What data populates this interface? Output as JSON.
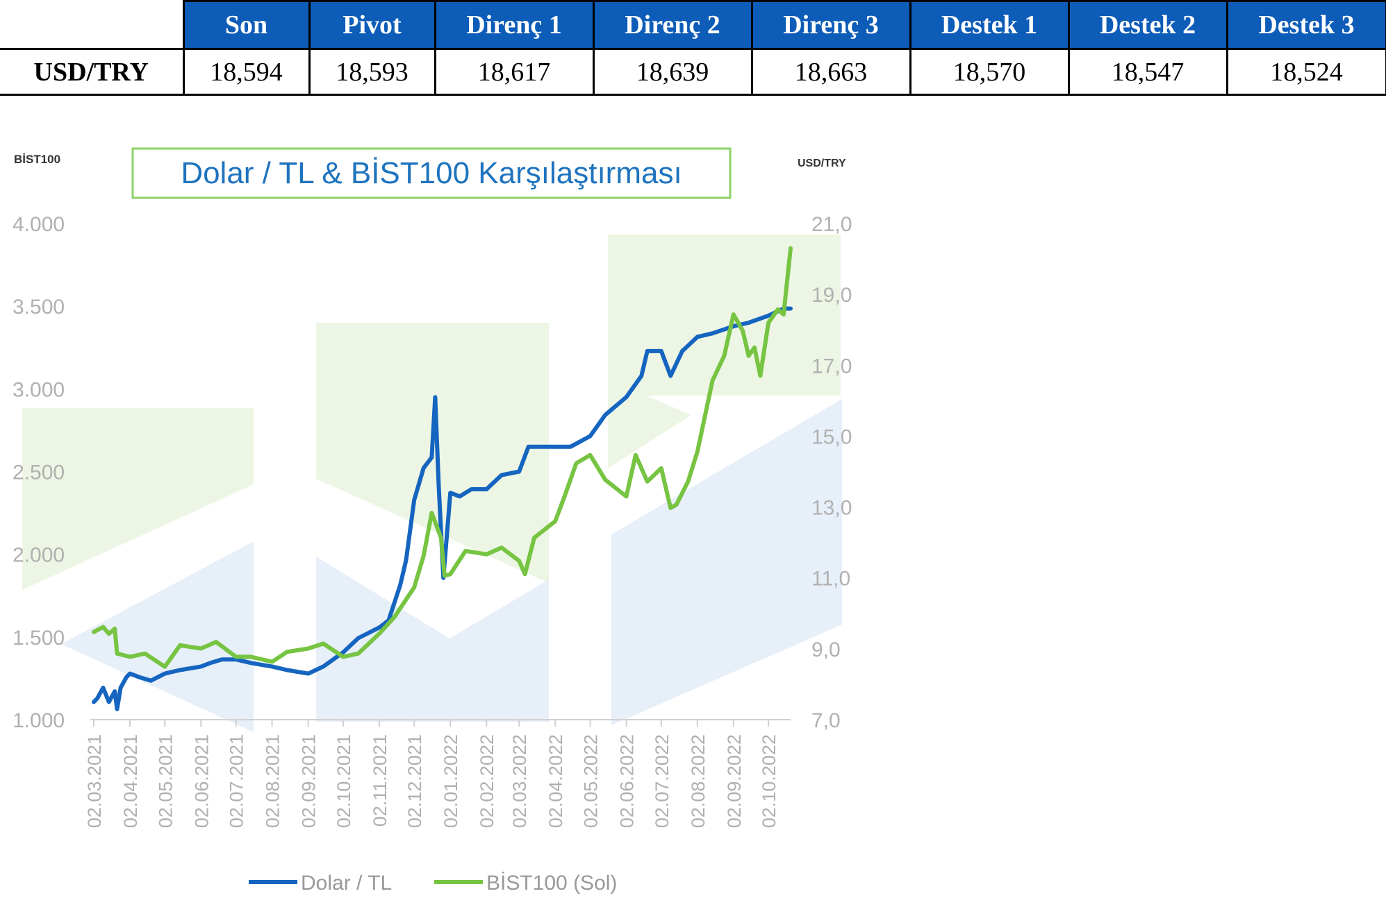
{
  "levels_table": {
    "headers": [
      "Son",
      "Pivot",
      "Direnç 1",
      "Direnç 2",
      "Direnç 3",
      "Destek 1",
      "Destek 2",
      "Destek 3"
    ],
    "row_label": "USD/TRY",
    "values": [
      "18,594",
      "18,593",
      "18,617",
      "18,639",
      "18,663",
      "18,570",
      "18,547",
      "18,524"
    ]
  },
  "chart_data": {
    "type": "line",
    "title": "Dolar / TL & BİST100 Karşılaştırması",
    "left_axis_label": "BİST100",
    "right_axis_label": "USD/TRY",
    "left_ylim": [
      1000,
      4000
    ],
    "right_ylim": [
      7.0,
      21.0
    ],
    "left_ticks": [
      "4.000",
      "3.500",
      "3.000",
      "2.500",
      "2.000",
      "1.500",
      "1.000"
    ],
    "right_ticks": [
      "21,0",
      "19,0",
      "17,0",
      "15,0",
      "13,0",
      "11,0",
      "9,0",
      "7,0"
    ],
    "x_ticks": [
      "02.03.2021",
      "02.04.2021",
      "02.05.2021",
      "02.06.2021",
      "02.07.2021",
      "02.08.2021",
      "02.09.2021",
      "02.10.2021",
      "02.11.2021",
      "02.12.2021",
      "02.01.2022",
      "02.02.2022",
      "02.03.2022",
      "02.04.2022",
      "02.05.2022",
      "02.06.2022",
      "02.07.2022",
      "02.08.2022",
      "02.09.2022",
      "02.10.2022"
    ],
    "legend_placement": "bottom",
    "grid": false,
    "series": [
      {
        "name": "Dolar / TL",
        "axis": "right",
        "color": "#1565c0",
        "x": [
          "02.03.2021",
          "05.03.2021",
          "10.03.2021",
          "15.03.2021",
          "20.03.2021",
          "22.03.2021",
          "25.03.2021",
          "30.03.2021",
          "02.04.2021",
          "10.04.2021",
          "20.04.2021",
          "02.05.2021",
          "15.05.2021",
          "02.06.2021",
          "10.06.2021",
          "20.06.2021",
          "02.07.2021",
          "15.07.2021",
          "02.08.2021",
          "15.08.2021",
          "02.09.2021",
          "15.09.2021",
          "02.10.2021",
          "15.10.2021",
          "02.11.2021",
          "10.11.2021",
          "20.11.2021",
          "25.11.2021",
          "02.12.2021",
          "10.12.2021",
          "17.12.2021",
          "20.12.2021",
          "23.12.2021",
          "27.12.2021",
          "02.01.2022",
          "10.01.2022",
          "20.01.2022",
          "02.02.2022",
          "15.02.2022",
          "02.03.2022",
          "10.03.2022",
          "20.03.2022",
          "02.04.2022",
          "15.04.2022",
          "02.05.2022",
          "15.05.2022",
          "02.06.2022",
          "15.06.2022",
          "20.06.2022",
          "02.07.2022",
          "10.07.2022",
          "20.07.2022",
          "02.08.2022",
          "15.08.2022",
          "02.09.2022",
          "15.09.2022",
          "02.10.2022",
          "15.10.2022",
          "21.10.2022"
        ],
        "y": [
          7.5,
          7.6,
          7.9,
          7.5,
          7.8,
          7.3,
          7.9,
          8.2,
          8.3,
          8.2,
          8.1,
          8.3,
          8.4,
          8.5,
          8.6,
          8.7,
          8.7,
          8.6,
          8.5,
          8.4,
          8.3,
          8.5,
          8.9,
          9.3,
          9.6,
          9.8,
          10.8,
          11.5,
          13.2,
          14.1,
          14.4,
          16.1,
          13.6,
          11.0,
          13.4,
          13.3,
          13.5,
          13.5,
          13.9,
          14.0,
          14.7,
          14.7,
          14.7,
          14.7,
          15.0,
          15.6,
          16.1,
          16.7,
          17.4,
          17.4,
          16.7,
          17.4,
          17.8,
          17.9,
          18.1,
          18.2,
          18.4,
          18.6,
          18.6
        ]
      },
      {
        "name": "BİST100 (Sol)",
        "axis": "left",
        "color": "#76c442",
        "x": [
          "02.03.2021",
          "10.03.2021",
          "15.03.2021",
          "20.03.2021",
          "22.03.2021",
          "02.04.2021",
          "15.04.2021",
          "02.05.2021",
          "15.05.2021",
          "02.06.2021",
          "15.06.2021",
          "02.07.2021",
          "15.07.2021",
          "02.08.2021",
          "15.08.2021",
          "02.09.2021",
          "15.09.2021",
          "02.10.2021",
          "15.10.2021",
          "02.11.2021",
          "15.11.2021",
          "02.12.2021",
          "10.12.2021",
          "17.12.2021",
          "25.12.2021",
          "28.12.2021",
          "02.01.2022",
          "15.01.2022",
          "02.02.2022",
          "15.02.2022",
          "02.03.2022",
          "07.03.2022",
          "15.03.2022",
          "02.04.2022",
          "10.04.2022",
          "20.04.2022",
          "02.05.2022",
          "15.05.2022",
          "02.06.2022",
          "10.06.2022",
          "20.06.2022",
          "02.07.2022",
          "10.07.2022",
          "15.07.2022",
          "25.07.2022",
          "02.08.2022",
          "15.08.2022",
          "25.08.2022",
          "02.09.2022",
          "10.09.2022",
          "15.09.2022",
          "20.09.2022",
          "25.09.2022",
          "02.10.2022",
          "10.10.2022",
          "15.10.2022",
          "21.10.2022"
        ],
        "y": [
          1530,
          1560,
          1520,
          1550,
          1400,
          1380,
          1400,
          1320,
          1450,
          1430,
          1470,
          1380,
          1380,
          1350,
          1410,
          1430,
          1460,
          1380,
          1400,
          1520,
          1620,
          1800,
          1990,
          2250,
          2100,
          1870,
          1880,
          2020,
          2000,
          2040,
          1960,
          1880,
          2100,
          2200,
          2350,
          2550,
          2600,
          2450,
          2350,
          2600,
          2440,
          2520,
          2280,
          2300,
          2440,
          2620,
          3050,
          3200,
          3450,
          3350,
          3200,
          3250,
          3080,
          3400,
          3480,
          3450,
          3850
        ]
      }
    ]
  }
}
